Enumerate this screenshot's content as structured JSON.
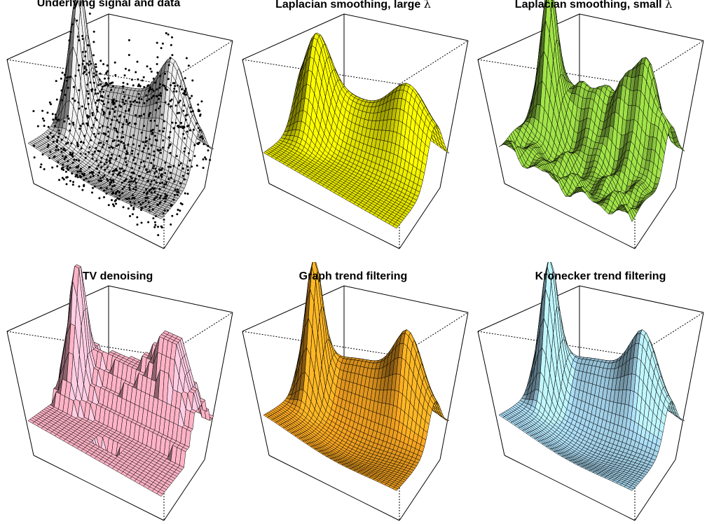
{
  "chart_data": [
    {
      "type": "surface",
      "title": "Underlying signal and data",
      "surface_color": "#d3d3d3",
      "smoothing": "true signal",
      "has_data_points": true
    },
    {
      "type": "surface",
      "title": "Laplacian smoothing, large λ",
      "title_text": "Laplacian smoothing, large ",
      "title_symbol": "λ",
      "surface_color": "#e6e600",
      "smoothing": "heavy"
    },
    {
      "type": "surface",
      "title": "Laplacian smoothing, small λ",
      "title_text": "Laplacian smoothing, small ",
      "title_symbol": "λ",
      "surface_color": "#8cc63f",
      "smoothing": "light, wiggly"
    },
    {
      "type": "surface",
      "title": "TV denoising",
      "surface_color": "#ffb3c6",
      "smoothing": "piecewise constant"
    },
    {
      "type": "surface",
      "title": "Graph trend filtering",
      "surface_color": "#f0a020",
      "smoothing": "adaptive"
    },
    {
      "type": "surface",
      "title": "Kronecker trend filtering",
      "surface_color": "#a8d8f0",
      "smoothing": "adaptive"
    }
  ]
}
